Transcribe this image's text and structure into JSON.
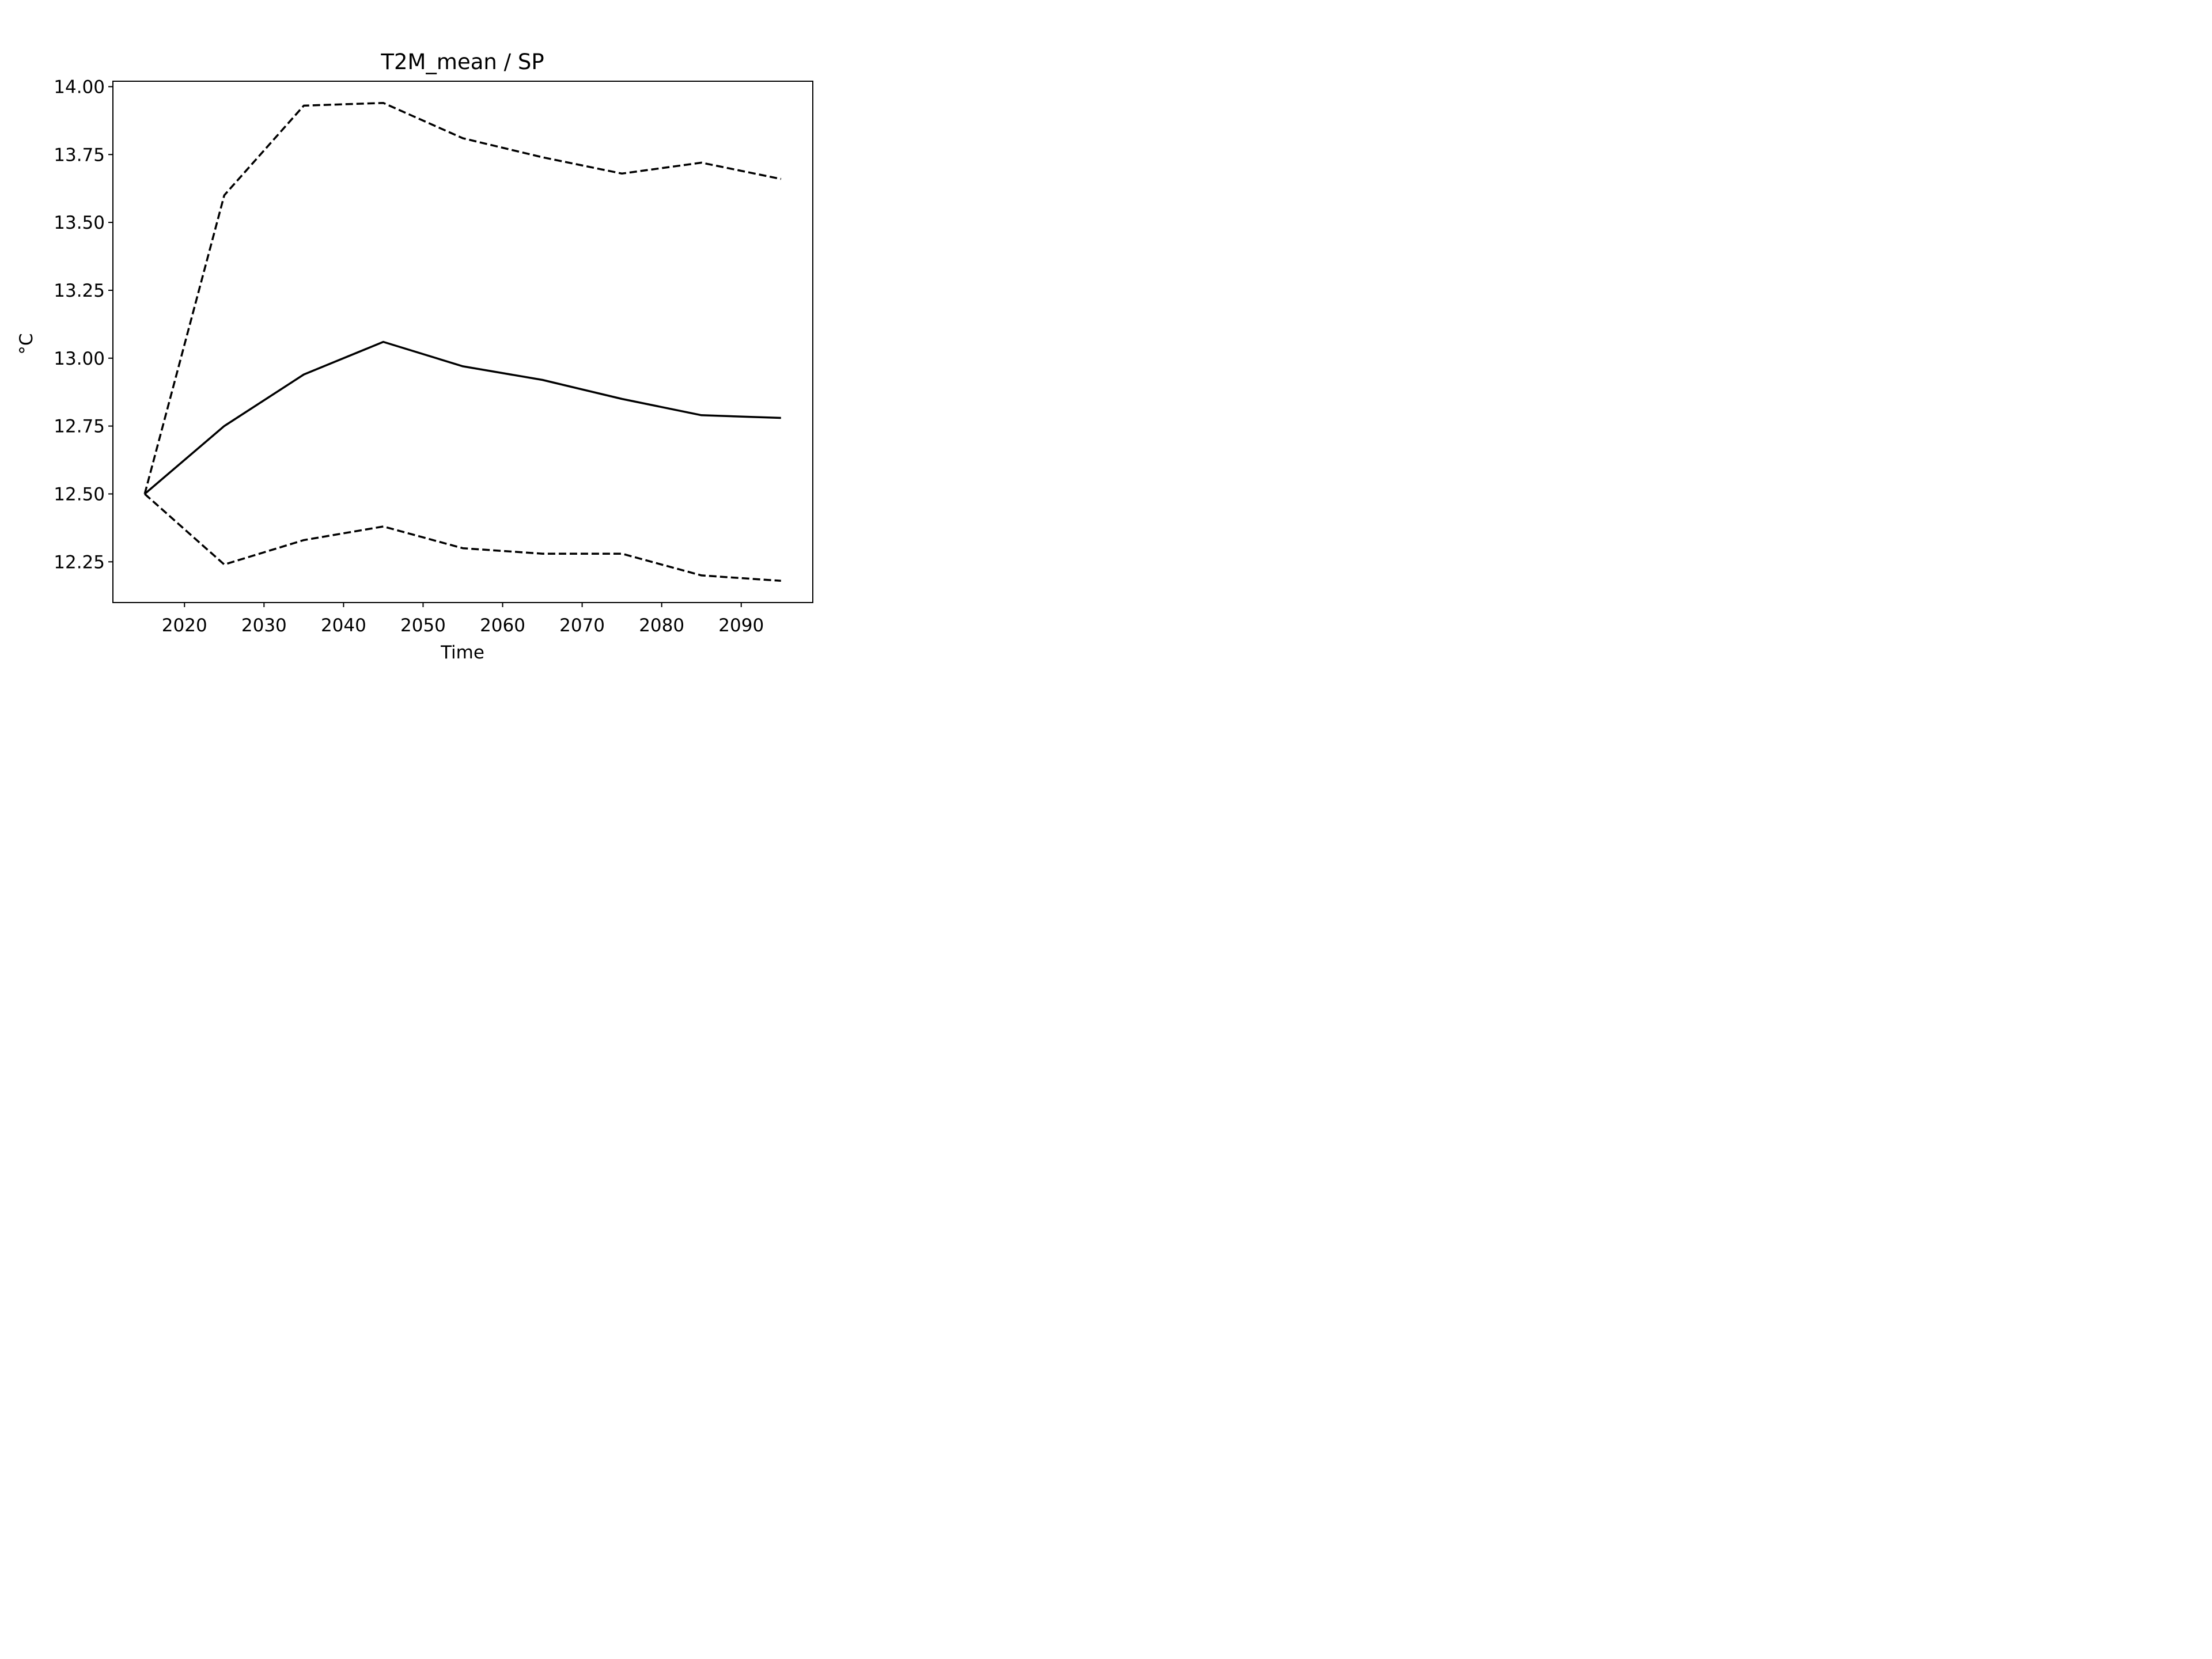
{
  "chart_data": {
    "type": "line",
    "title": "T2M_mean / SP",
    "xlabel": "Time",
    "ylabel": "°C",
    "x": [
      2015,
      2025,
      2035,
      2045,
      2055,
      2065,
      2075,
      2085,
      2095
    ],
    "series": [
      {
        "role": "upper",
        "style": "dashed",
        "color": "#000000",
        "values": [
          12.5,
          13.6,
          13.93,
          13.94,
          13.81,
          13.74,
          13.68,
          13.72,
          13.66
        ]
      },
      {
        "role": "mean",
        "style": "solid",
        "color": "#000000",
        "values": [
          12.5,
          12.75,
          12.94,
          13.06,
          12.97,
          12.92,
          12.85,
          12.79,
          12.78
        ]
      },
      {
        "role": "lower",
        "style": "dashed",
        "color": "#000000",
        "values": [
          12.5,
          12.24,
          12.33,
          12.38,
          12.3,
          12.28,
          12.28,
          12.2,
          12.18
        ]
      }
    ],
    "xlim": [
      2011,
      2099
    ],
    "ylim": [
      12.1,
      14.02
    ],
    "xticks": [
      2020,
      2030,
      2040,
      2050,
      2060,
      2070,
      2080,
      2090
    ],
    "xtick_labels": [
      "2020",
      "2030",
      "2040",
      "2050",
      "2060",
      "2070",
      "2080",
      "2090"
    ],
    "yticks": [
      12.25,
      12.5,
      12.75,
      13.0,
      13.25,
      13.5,
      13.75,
      14.0
    ],
    "ytick_labels": [
      "12.25",
      "12.50",
      "12.75",
      "13.00",
      "13.25",
      "13.50",
      "13.75",
      "14.00"
    ],
    "grid": false,
    "legend": "none"
  }
}
